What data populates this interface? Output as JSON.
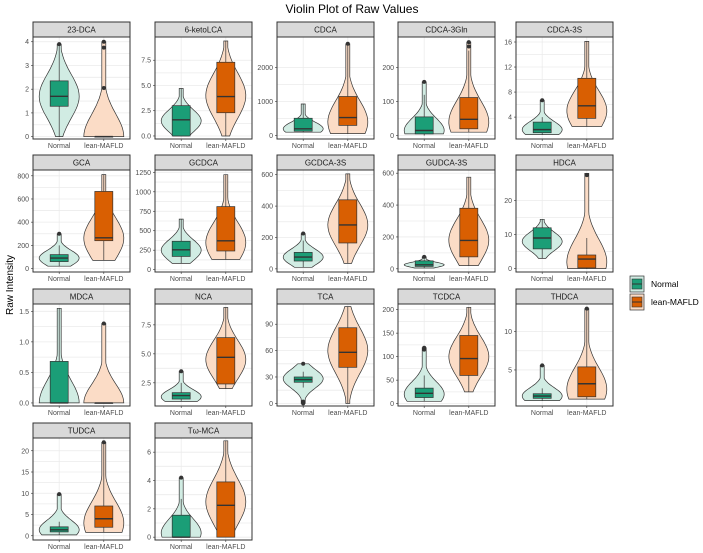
{
  "title": "Violin Plot of Raw Values",
  "ylabel": "Raw Intensity",
  "legend": {
    "items": [
      {
        "name": "Normal",
        "color": "#1b9e77",
        "fill": "#d1ece3"
      },
      {
        "name": "lean-MAFLD",
        "color": "#d95f02",
        "fill": "#fbdcc6"
      }
    ],
    "placement": "right"
  },
  "chart_data": {
    "type": "violin",
    "title": "Violin Plot of Raw Values",
    "ylabel": "Raw Intensity",
    "categories": [
      "Normal",
      "lean-MAFLD"
    ],
    "grid": true,
    "facets": [
      {
        "title": "23-DCA",
        "ylim": [
          -0.1,
          4.2
        ],
        "yticks": [
          0,
          1,
          2,
          3,
          4
        ],
        "groups": [
          {
            "box": [
              0,
              1.28,
              1.7,
              2.35,
              3.9
            ],
            "violin": [
              0,
              3.9
            ],
            "peak": 1.7,
            "outliers": [
              3.9
            ]
          },
          {
            "box": [
              0,
              0,
              0,
              0,
              0
            ],
            "violin": [
              0,
              4.0
            ],
            "peak": 0,
            "outliers": [
              2.05,
              3.75,
              4.0
            ]
          }
        ]
      },
      {
        "title": "6-ketoLCA",
        "ylim": [
          -0.3,
          9.8
        ],
        "yticks": [
          0,
          2.5,
          5,
          7.5
        ],
        "tick_labels": [
          "0.0",
          "2.5",
          "5.0",
          "7.5"
        ],
        "groups": [
          {
            "box": [
              0,
              0,
              1.6,
              3.0,
              4.7
            ],
            "violin": [
              0,
              4.7
            ],
            "peak": 1.5,
            "outliers": []
          },
          {
            "box": [
              0,
              2.3,
              3.9,
              7.3,
              9.4
            ],
            "violin": [
              0,
              9.4
            ],
            "peak": 4,
            "outliers": []
          }
        ]
      },
      {
        "title": "CDCA",
        "ylim": [
          -100,
          2900
        ],
        "yticks": [
          0,
          1000,
          2000
        ],
        "groups": [
          {
            "box": [
              100,
              130,
              200,
              510,
              930
            ],
            "violin": [
              100,
              930
            ],
            "peak": 200,
            "outliers": []
          },
          {
            "box": [
              60,
              300,
              530,
              1150,
              2700
            ],
            "violin": [
              60,
              2700
            ],
            "peak": 400,
            "outliers": [
              2700
            ]
          }
        ]
      },
      {
        "title": "CDCA-3Gln",
        "ylim": [
          -10,
          290
        ],
        "yticks": [
          0,
          100,
          200
        ],
        "groups": [
          {
            "box": [
              0,
              5,
              15,
              55,
              120
            ],
            "violin": [
              5,
              158
            ],
            "peak": 15,
            "outliers": [
              158
            ]
          },
          {
            "box": [
              10,
              20,
              48,
              112,
              250
            ],
            "violin": [
              10,
              275
            ],
            "peak": 40,
            "outliers": [
              262,
              275
            ]
          }
        ]
      },
      {
        "title": "CDCA-3S",
        "ylim": [
          0.5,
          16.8
        ],
        "yticks": [
          4,
          8,
          12,
          16
        ],
        "groups": [
          {
            "box": [
              1.2,
              1.5,
              2,
              3.2,
              4
            ],
            "violin": [
              1.2,
              6.7
            ],
            "peak": 2,
            "outliers": [
              6.7
            ]
          },
          {
            "box": [
              2.5,
              3.8,
              5.8,
              10.2,
              16.1
            ],
            "violin": [
              2.5,
              16.1
            ],
            "peak": 5,
            "outliers": []
          }
        ]
      },
      {
        "title": "GCA",
        "ylim": [
          -30,
          850
        ],
        "yticks": [
          0,
          200,
          400,
          600,
          800
        ],
        "groups": [
          {
            "box": [
              20,
              60,
              90,
              120,
              200
            ],
            "violin": [
              20,
              300
            ],
            "peak": 90,
            "outliers": [
              300
            ]
          },
          {
            "box": [
              70,
              240,
              265,
              665,
              810
            ],
            "violin": [
              70,
              810
            ],
            "peak": 260,
            "outliers": []
          }
        ]
      },
      {
        "title": "GCDCA",
        "ylim": [
          -30,
          1280
        ],
        "yticks": [
          0,
          250,
          500,
          750,
          1000,
          1250
        ],
        "groups": [
          {
            "box": [
              80,
              170,
              255,
              365,
              650
            ],
            "violin": [
              80,
              650
            ],
            "peak": 250,
            "outliers": []
          },
          {
            "box": [
              130,
              240,
              370,
              810,
              1220
            ],
            "violin": [
              130,
              1220
            ],
            "peak": 350,
            "outliers": []
          }
        ]
      },
      {
        "title": "GCDCA-3S",
        "ylim": [
          -20,
          630
        ],
        "yticks": [
          0,
          200,
          400,
          600
        ],
        "groups": [
          {
            "box": [
              10,
              50,
              75,
              105,
              180
            ],
            "violin": [
              10,
              225
            ],
            "peak": 75,
            "outliers": [
              225
            ]
          },
          {
            "box": [
              35,
              165,
              280,
              440,
              605
            ],
            "violin": [
              35,
              605
            ],
            "peak": 280,
            "outliers": []
          }
        ]
      },
      {
        "title": "GUDCA-3S",
        "ylim": [
          -20,
          620
        ],
        "yticks": [
          0,
          200,
          400,
          600
        ],
        "groups": [
          {
            "box": [
              5,
              15,
              25,
              50,
              60
            ],
            "violin": [
              5,
              75
            ],
            "peak": 25,
            "outliers": [
              75
            ]
          },
          {
            "box": [
              20,
              75,
              178,
              380,
              575
            ],
            "violin": [
              20,
              575
            ],
            "peak": 180,
            "outliers": []
          }
        ]
      },
      {
        "title": "HDCA",
        "ylim": [
          -1,
          29
        ],
        "yticks": [
          0,
          10,
          20
        ],
        "groups": [
          {
            "box": [
              3,
              5.8,
              9,
              12,
              14.5
            ],
            "violin": [
              3,
              14.5
            ],
            "peak": 8,
            "outliers": []
          },
          {
            "box": [
              0,
              0.2,
              2.8,
              4,
              9
            ],
            "violin": [
              0,
              28
            ],
            "peak": 2,
            "outliers": [
              27.5
            ]
          }
        ]
      },
      {
        "title": "MDCA",
        "ylim": [
          -0.05,
          1.62
        ],
        "yticks": [
          0,
          0.5,
          1,
          1.5
        ],
        "tick_labels": [
          "0.0",
          "0.5",
          "1.0",
          "1.5"
        ],
        "groups": [
          {
            "box": [
              0,
              0,
              0,
              0.68,
              1.55
            ],
            "violin": [
              0,
              1.55
            ],
            "peak": 0,
            "outliers": []
          },
          {
            "box": [
              0,
              0,
              0,
              0,
              0
            ],
            "violin": [
              0,
              1.3
            ],
            "peak": 0,
            "outliers": [
              1.3
            ]
          }
        ]
      },
      {
        "title": "NCA",
        "ylim": [
          0.5,
          9.3
        ],
        "yticks": [
          2.5,
          5,
          7.5
        ],
        "tick_labels": [
          "2.5",
          "5.0",
          "7.5"
        ],
        "groups": [
          {
            "box": [
              0.9,
              1.1,
              1.4,
              1.65,
              2.5
            ],
            "violin": [
              0.9,
              3.5
            ],
            "peak": 1.3,
            "outliers": [
              3.5
            ]
          },
          {
            "box": [
              2,
              2.4,
              4.7,
              6.4,
              9
            ],
            "violin": [
              2,
              9
            ],
            "peak": 4.5,
            "outliers": []
          }
        ]
      },
      {
        "title": "TCA",
        "ylim": [
          -3,
          113
        ],
        "yticks": [
          0,
          30,
          60,
          90
        ],
        "groups": [
          {
            "box": [
              18,
              24,
              27,
              30,
              36
            ],
            "violin": [
              0,
              45
            ],
            "peak": 28,
            "outliers": [
              0,
              2,
              45
            ]
          },
          {
            "box": [
              0,
              41,
              58,
              86,
              110
            ],
            "violin": [
              0,
              110
            ],
            "peak": 60,
            "outliers": []
          }
        ]
      },
      {
        "title": "TCDCA",
        "ylim": [
          -5,
          212
        ],
        "yticks": [
          0,
          50,
          100,
          150,
          200
        ],
        "groups": [
          {
            "box": [
              5,
              13,
              22,
              33,
              60
            ],
            "violin": [
              5,
              119
            ],
            "peak": 20,
            "outliers": [
              115,
              119
            ]
          },
          {
            "box": [
              25,
              60,
              96,
              145,
              205
            ],
            "violin": [
              25,
              205
            ],
            "peak": 100,
            "outliers": []
          }
        ]
      },
      {
        "title": "THDCA",
        "ylim": [
          0.3,
          13.6
        ],
        "yticks": [
          5,
          10
        ],
        "groups": [
          {
            "box": [
              1,
              1.3,
              1.6,
              1.9,
              2.6
            ],
            "violin": [
              1,
              5.6
            ],
            "peak": 1.6,
            "outliers": [
              5.6
            ]
          },
          {
            "box": [
              1.2,
              1.5,
              3.2,
              5.4,
              13
            ],
            "violin": [
              1.2,
              13
            ],
            "peak": 2.5,
            "outliers": [
              13
            ]
          }
        ]
      },
      {
        "title": "TUDCA",
        "ylim": [
          -1,
          23
        ],
        "yticks": [
          0,
          5,
          10,
          15,
          20
        ],
        "groups": [
          {
            "box": [
              0.2,
              0.9,
              1.4,
              2.1,
              3.3
            ],
            "violin": [
              0.2,
              9.8
            ],
            "peak": 1.4,
            "outliers": [
              9.8
            ]
          },
          {
            "box": [
              0.8,
              2,
              4,
              7,
              22
            ],
            "violin": [
              0.8,
              22
            ],
            "peak": 3,
            "outliers": [
              22
            ]
          }
        ]
      },
      {
        "title": "Tω-MCA",
        "ylim": [
          -0.2,
          7
        ],
        "yticks": [
          0,
          2,
          4,
          6
        ],
        "groups": [
          {
            "box": [
              0,
              0,
              0,
              1.55,
              2.7
            ],
            "violin": [
              0,
              4.2
            ],
            "peak": 0.3,
            "outliers": [
              4.2
            ]
          },
          {
            "box": [
              0,
              0,
              2.25,
              3.9,
              6.8
            ],
            "violin": [
              0,
              6.8
            ],
            "peak": 2.5,
            "outliers": []
          }
        ]
      }
    ]
  }
}
